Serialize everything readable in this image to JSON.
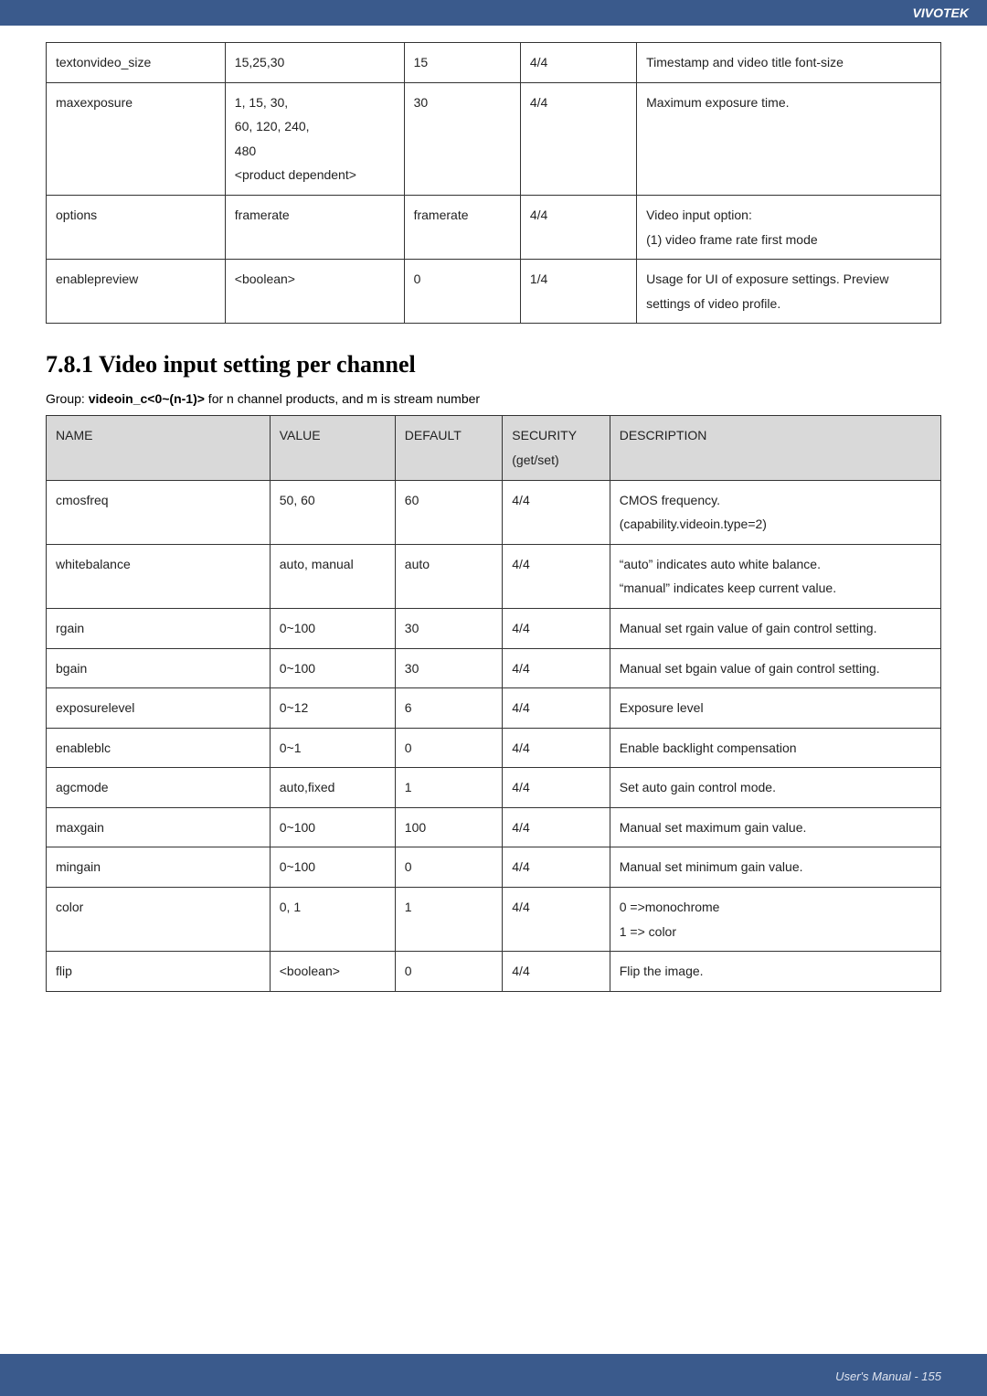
{
  "brand": "VIVOTEK",
  "footer": "User's Manual - 155",
  "table1": {
    "rows": [
      {
        "name": "textonvideo_size",
        "value": "15,25,30",
        "default": "15",
        "security": "4/4",
        "desc": "Timestamp and video title font-size"
      },
      {
        "name": "maxexposure",
        "value": "1, 15, 30,\n60, 120, 240,\n480\n<product dependent>",
        "default": "30",
        "security": "4/4",
        "desc": "Maximum exposure time."
      },
      {
        "name": "options",
        "value": "framerate",
        "default": "framerate",
        "security": "4/4",
        "desc": "Video input option:\n(1) video frame rate first mode"
      },
      {
        "name": "enablepreview",
        "value": "<boolean>",
        "default": "0",
        "security": "1/4",
        "desc": "Usage for UI of exposure settings. Preview settings of video profile."
      }
    ]
  },
  "section": {
    "title": "7.8.1 Video input setting per channel",
    "group_prefix": "Group: ",
    "group_code": "videoin_c<0~(n-1)>",
    "group_suffix": " for n channel products, and m is stream number"
  },
  "table2": {
    "headers": {
      "name": "NAME",
      "value": "VALUE",
      "default": "DEFAULT",
      "security": "SECURITY\n(get/set)",
      "desc": "DESCRIPTION"
    },
    "rows": [
      {
        "name": "cmosfreq",
        "value": "50, 60",
        "default": "60",
        "security": "4/4",
        "desc": "CMOS frequency.\n(capability.videoin.type=2)"
      },
      {
        "name": "whitebalance",
        "value": "auto, manual",
        "default": "auto",
        "security": "4/4",
        "desc": "“auto” indicates auto white balance.\n“manual” indicates keep current value."
      },
      {
        "name": "rgain",
        "value": "0~100",
        "default": "30",
        "security": "4/4",
        "desc": "Manual set rgain value of gain control setting."
      },
      {
        "name": "bgain",
        "value": "0~100",
        "default": "30",
        "security": "4/4",
        "desc": "Manual set bgain value of gain control setting."
      },
      {
        "name": "exposurelevel",
        "value": "0~12",
        "default": "6",
        "security": "4/4",
        "desc": "Exposure level"
      },
      {
        "name": "enableblc",
        "value": "0~1",
        "default": "0",
        "security": "4/4",
        "desc": "Enable backlight compensation"
      },
      {
        "name": "agcmode",
        "value": "auto,fixed",
        "default": "1",
        "security": "4/4",
        "desc": "Set auto gain control mode."
      },
      {
        "name": "maxgain",
        "value": "0~100",
        "default": "100",
        "security": "4/4",
        "desc": "Manual set maximum gain value."
      },
      {
        "name": "mingain",
        "value": "0~100",
        "default": "0",
        "security": "4/4",
        "desc": "Manual set minimum gain value."
      },
      {
        "name": "color",
        "value": "0, 1",
        "default": "1",
        "security": "4/4",
        "desc": "0 =>monochrome\n1 => color"
      },
      {
        "name": "flip",
        "value": "<boolean>",
        "default": "0",
        "security": "4/4",
        "desc": "Flip the image."
      }
    ]
  }
}
